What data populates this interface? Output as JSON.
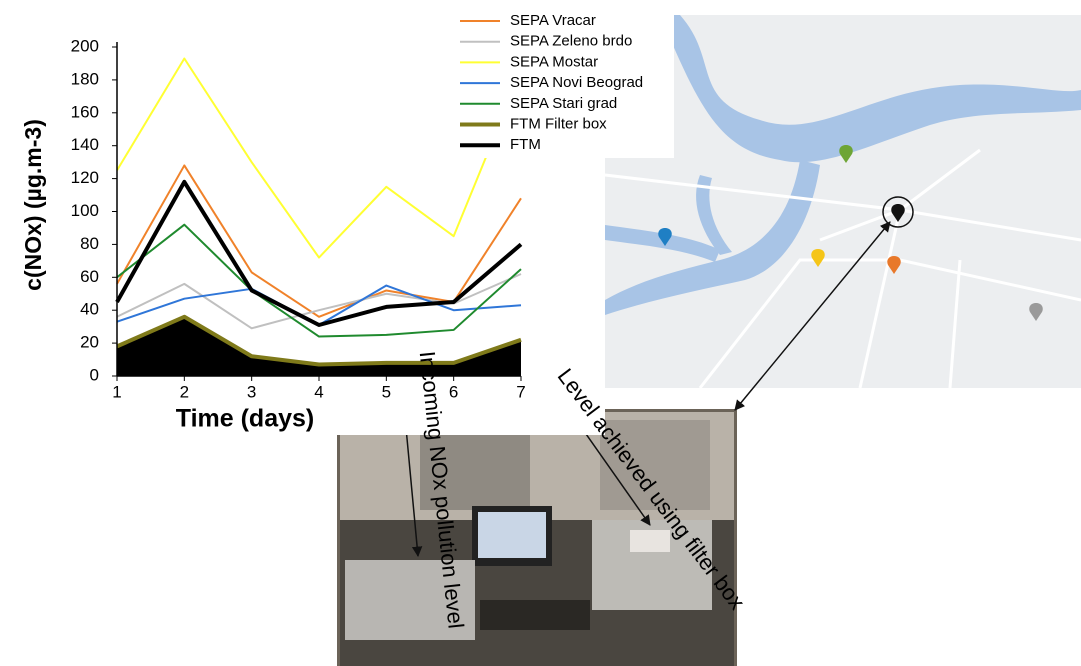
{
  "chart_data": {
    "type": "line",
    "ylabel": "c(NOx) (µg.m-3)",
    "xlabel": "Time (days)",
    "x": [
      1,
      2,
      3,
      4,
      5,
      6,
      7
    ],
    "xlim": [
      1,
      7
    ],
    "xticks": [
      1,
      2,
      3,
      4,
      5,
      6,
      7
    ],
    "ylim": [
      0,
      200
    ],
    "yticks": [
      0,
      20,
      40,
      60,
      80,
      100,
      120,
      140,
      160,
      180,
      200
    ],
    "legend": "top-right",
    "series": [
      {
        "name": "SEPA Vracar",
        "color": "#f0822a",
        "values": [
          56,
          128,
          63,
          36,
          52,
          45,
          108
        ]
      },
      {
        "name": "SEPA Zeleno brdo",
        "color": "#c0c0c0",
        "values": [
          36,
          56,
          29,
          40,
          50,
          44,
          62
        ]
      },
      {
        "name": "SEPA Mostar",
        "color": "#ffff33",
        "values": [
          125,
          193,
          130,
          72,
          115,
          85,
          185
        ]
      },
      {
        "name": "SEPA Novi Beograd",
        "color": "#2f76d8",
        "values": [
          33,
          47,
          53,
          31,
          55,
          40,
          43
        ]
      },
      {
        "name": "SEPA Stari grad",
        "color": "#1f8a2e",
        "values": [
          60,
          92,
          52,
          24,
          25,
          28,
          65
        ]
      },
      {
        "name": "FTM Filter box",
        "color": "#7f7a1a",
        "fill": "#000000",
        "width": 4,
        "values": [
          18,
          36,
          12,
          7,
          8,
          8,
          22
        ]
      },
      {
        "name": "FTM",
        "color": "#000000",
        "width": 4,
        "values": [
          45,
          118,
          52,
          31,
          42,
          45,
          80
        ]
      }
    ],
    "annotations": [
      "Incoming NOx pollution level",
      "Level achieved using filter box"
    ]
  }
}
